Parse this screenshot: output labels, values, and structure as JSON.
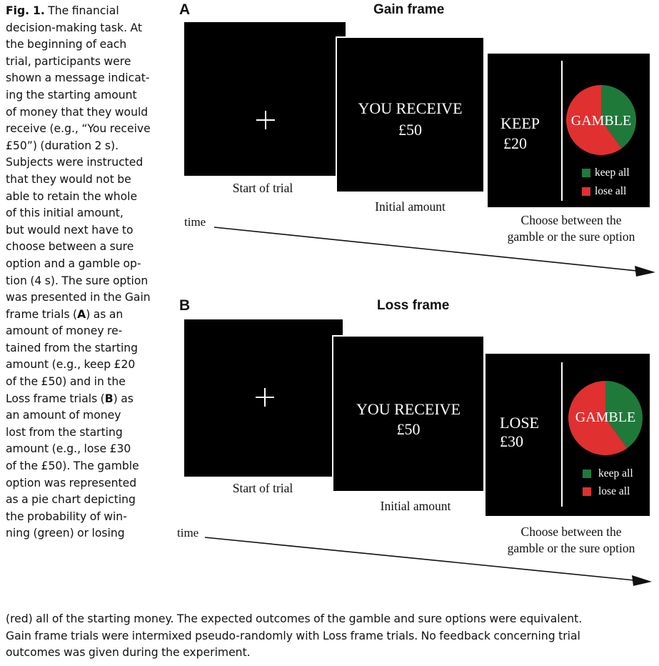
{
  "caption": {
    "fig_label": "Fig. 1.",
    "side_lines": [
      " The financial",
      "decision-making task. At",
      "the beginning of each",
      "trial, participants were",
      "shown a message indicat-",
      "ing the starting amount",
      "of money that they would",
      "receive (e.g., “You receive",
      "£50”) (duration 2 s).",
      "Subjects were instructed",
      "that they would not be",
      "able to retain the whole",
      "of this initial amount,",
      "but would next have to",
      "choose between a sure",
      "option and a gamble op-",
      "tion (4 s). The sure option",
      "was presented in the Gain",
      "frame trials (",
      "amount of money re-",
      "tained from the starting",
      "amount (e.g., keep £20",
      "of the £50) and in the",
      "Loss frame trials (",
      "an amount of money",
      "lost from the starting",
      "amount (e.g., lose £30",
      "of the £50). The gamble",
      "option was represented",
      "as a pie chart depicting",
      "the probability of win-",
      "ning (green) or losing"
    ],
    "ref_a": "A",
    "after_a": ") as an",
    "ref_b": "B",
    "after_b": ") as",
    "bottom_lines": [
      "(red) all of the starting money. The expected outcomes of the gamble and sure options were equivalent.",
      "Gain frame trials were intermixed pseudo-randomly with Loss frame trials. No feedback concerning trial",
      "outcomes was given during the experiment."
    ]
  },
  "panel_a": {
    "letter": "A",
    "title": "Gain frame",
    "start_label": "Start of trial",
    "initial_text_1": "YOU RECEIVE",
    "initial_text_2": "£50",
    "initial_label": "Initial amount",
    "sure_text_1": "KEEP",
    "sure_text_2": "£20",
    "gamble_label": "GAMBLE",
    "legend_keep": "keep all",
    "legend_lose": "lose all",
    "choose_label_1": "Choose between the",
    "choose_label_2": "gamble or the sure option",
    "time_label": "time",
    "pie_green_fraction": 0.4
  },
  "panel_b": {
    "letter": "B",
    "title": "Loss frame",
    "start_label": "Start of trial",
    "initial_text_1": "YOU RECEIVE",
    "initial_text_2": "£50",
    "initial_label": "Initial amount",
    "sure_text_1": "LOSE",
    "sure_text_2": "£30",
    "gamble_label": "GAMBLE",
    "legend_keep": "keep all",
    "legend_lose": "lose all",
    "choose_label_1": "Choose between the",
    "choose_label_2": "gamble or the sure option",
    "time_label": "time",
    "pie_green_fraction": 0.4
  },
  "colors": {
    "screen_bg": "#000000",
    "keep_green": "#1f7a3a",
    "lose_red": "#e03030"
  }
}
